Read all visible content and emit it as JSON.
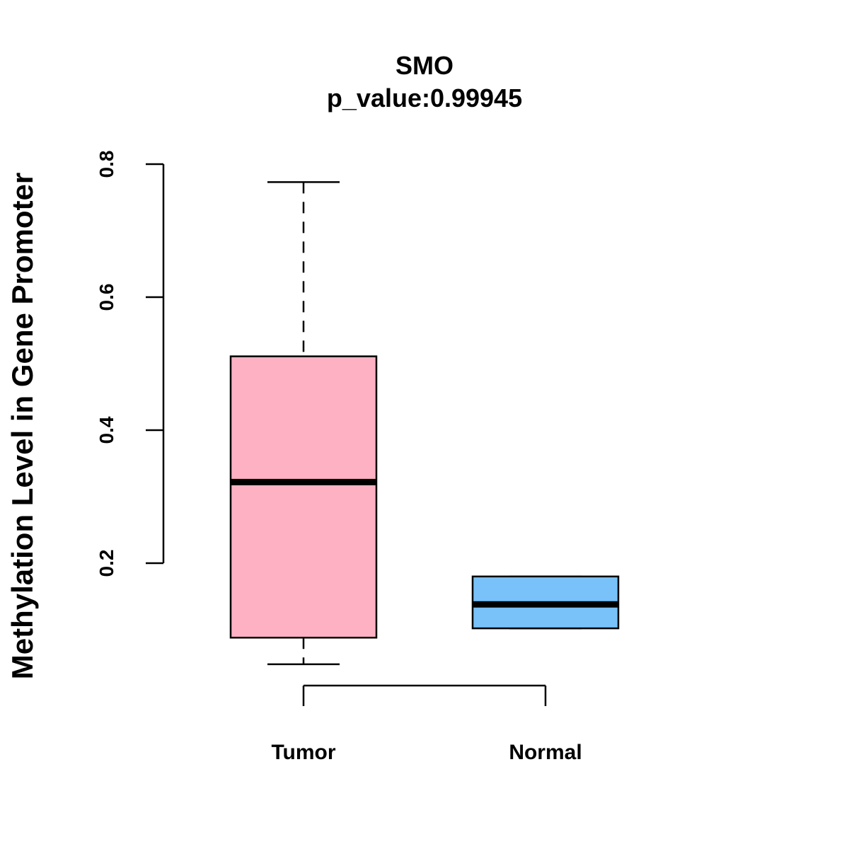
{
  "chart_data": {
    "type": "box",
    "title": "SMO",
    "subtitle": "p_value:0.99945",
    "ylabel": "Methylation Level in Gene Promoter",
    "xlabel": "",
    "y_ticks": [
      "0.2",
      "0.4",
      "0.6",
      "0.8"
    ],
    "y_tick_values": [
      0.2,
      0.4,
      0.6,
      0.8
    ],
    "categories": [
      "Tumor",
      "Normal"
    ],
    "boxes": [
      {
        "category": "Tumor",
        "whisker_low": 0.048,
        "q1": 0.088,
        "median": 0.322,
        "q3": 0.511,
        "whisker_high": 0.773,
        "color": "#FDB1C3"
      },
      {
        "category": "Normal",
        "whisker_low": 0.102,
        "q1": 0.102,
        "median": 0.138,
        "q3": 0.18,
        "whisker_high": 0.18,
        "color": "#78C1F9"
      }
    ],
    "grid": false,
    "legend": "none"
  }
}
